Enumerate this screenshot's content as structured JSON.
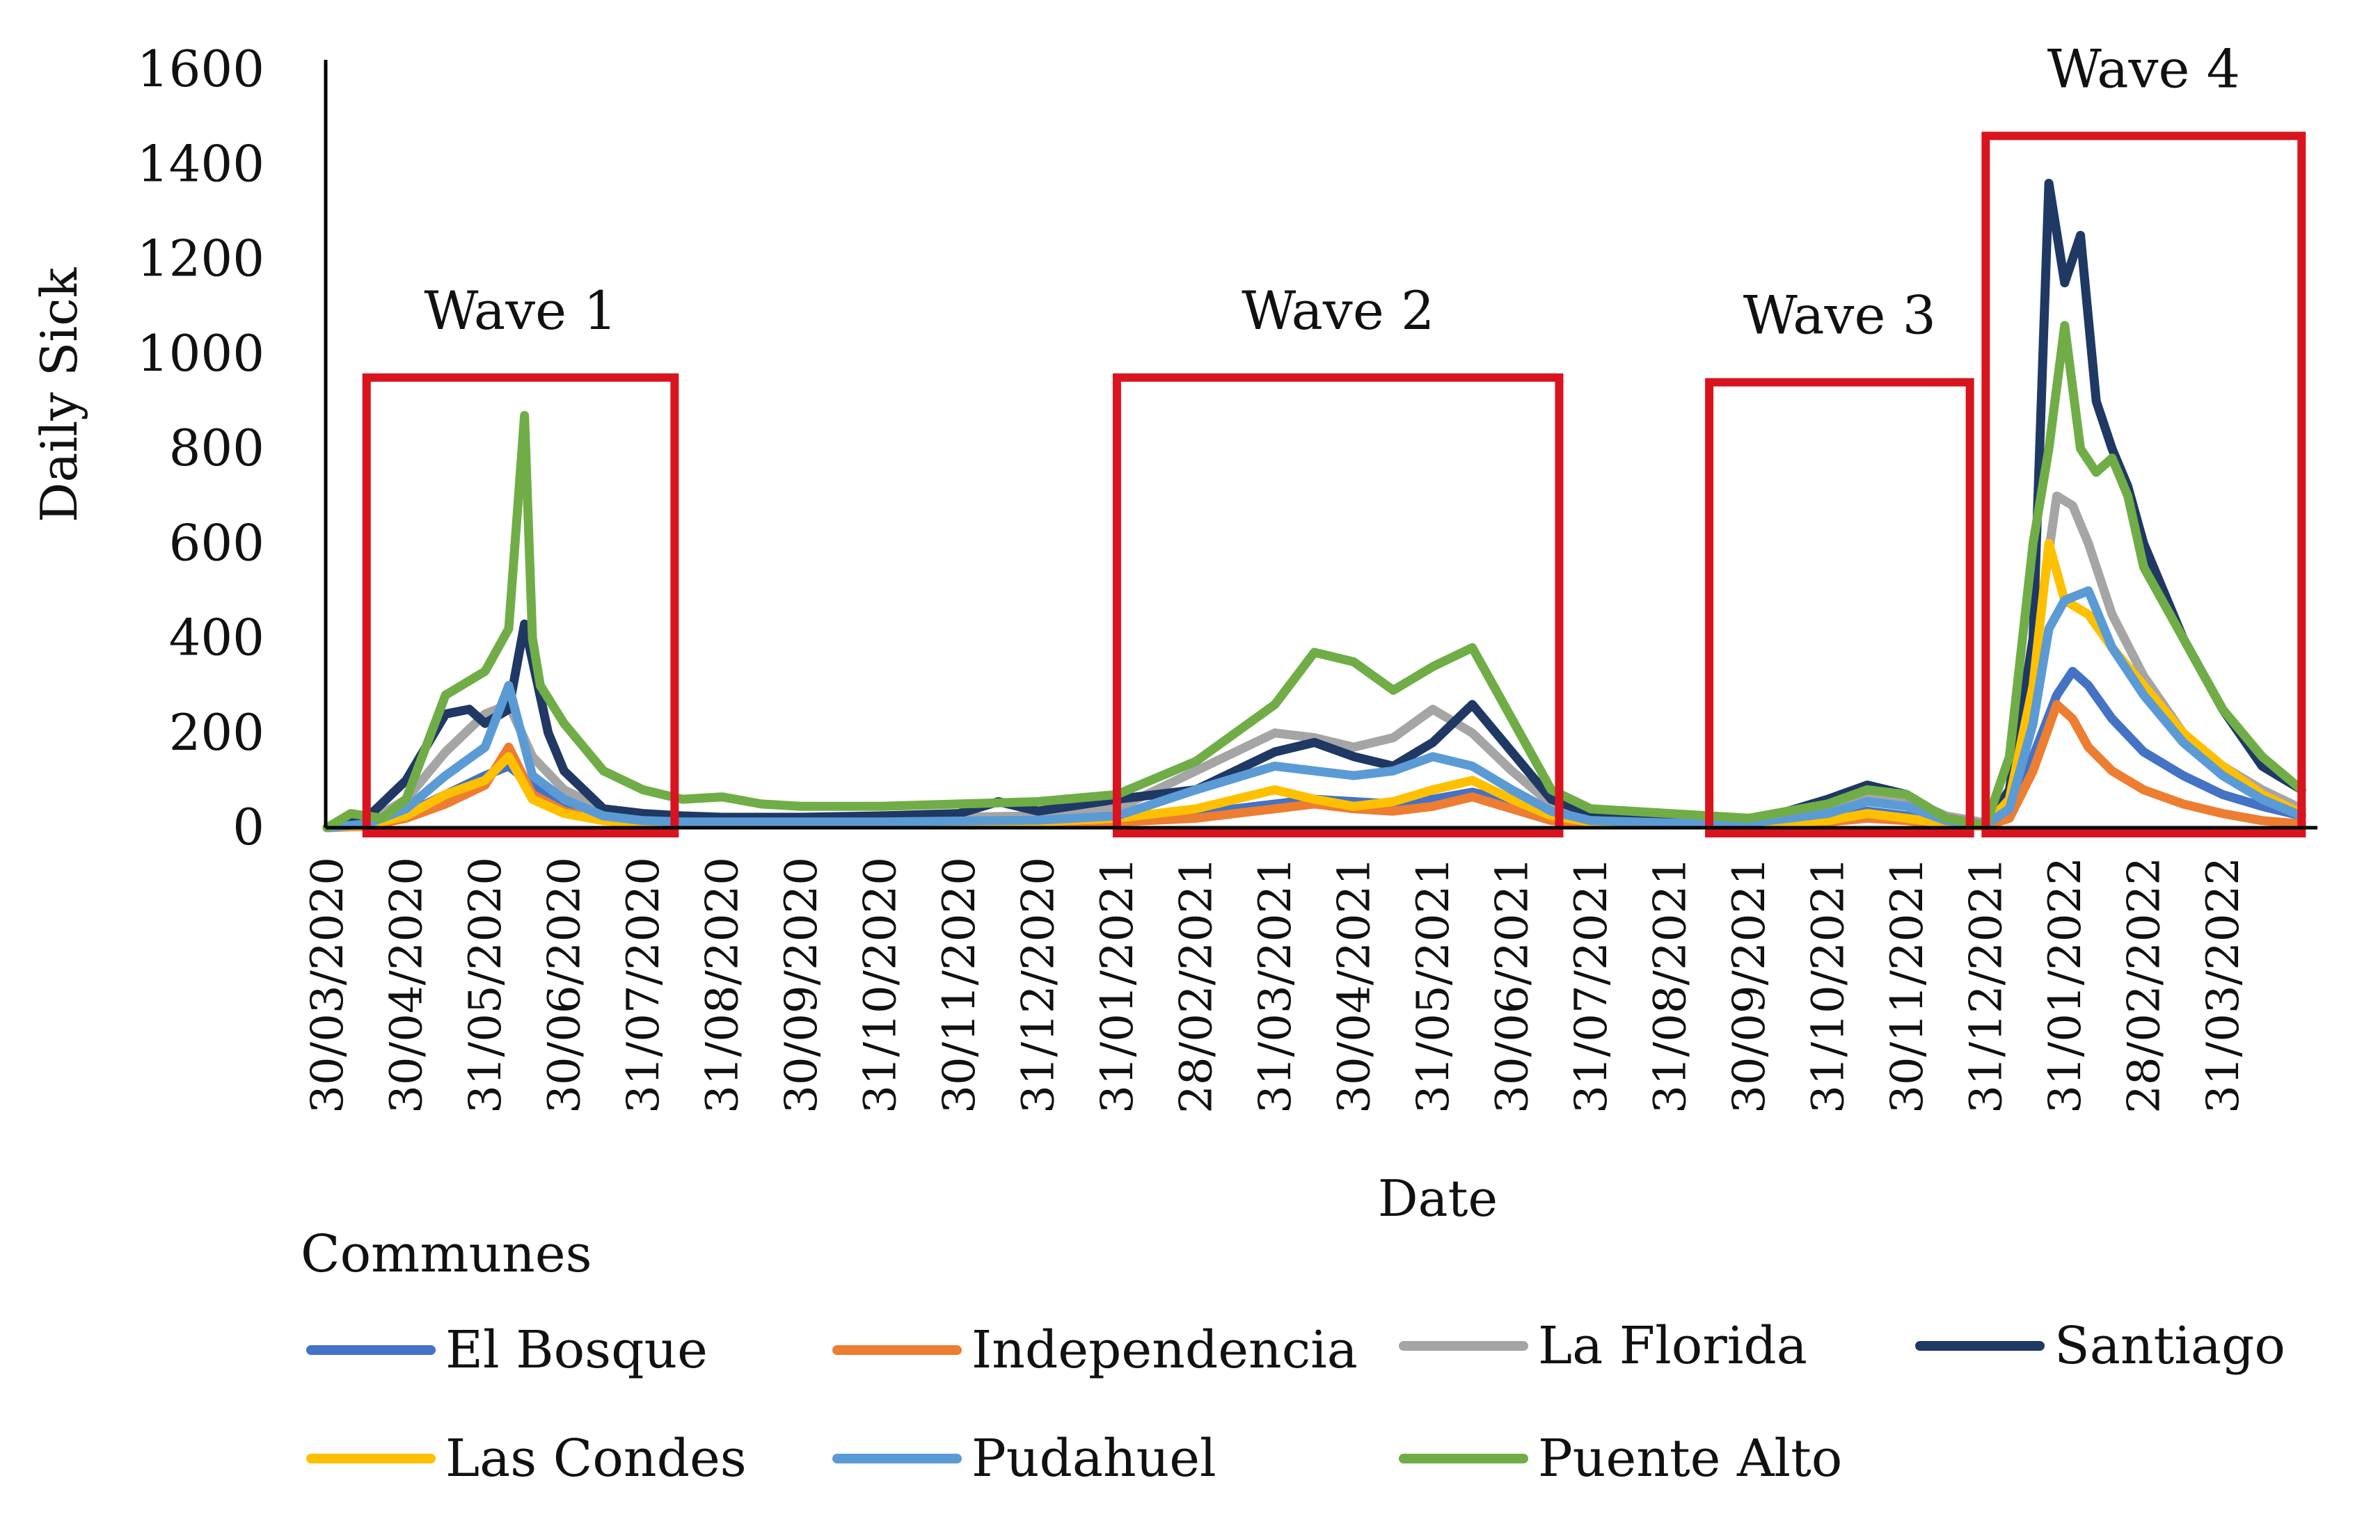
{
  "chart_data": {
    "type": "line",
    "xlabel": "Date",
    "ylabel": "Daily Sick",
    "ylim": [
      0,
      1600
    ],
    "yticks": [
      "0",
      "200",
      "400",
      "600",
      "800",
      "1000",
      "1200",
      "1400",
      "1600"
    ],
    "x_tick_labels": [
      "30/03/2020",
      "30/04/2020",
      "31/05/2020",
      "30/06/2020",
      "31/07/2020",
      "31/08/2020",
      "30/09/2020",
      "31/10/2020",
      "30/11/2020",
      "31/12/2020",
      "31/01/2021",
      "28/02/2021",
      "31/03/2021",
      "30/04/2021",
      "31/05/2021",
      "30/06/2021",
      "31/07/2021",
      "31/08/2021",
      "30/09/2021",
      "31/10/2021",
      "30/11/2021",
      "31/12/2021",
      "31/01/2022",
      "28/02/2022",
      "31/03/2022"
    ],
    "x_tick_months": [
      0,
      1,
      2,
      3,
      4,
      5,
      6,
      7,
      8,
      9,
      10,
      11,
      12,
      13,
      14,
      15,
      16,
      17,
      18,
      19,
      20,
      21,
      22,
      23,
      24
    ],
    "x_range_months": [
      0,
      25.2
    ],
    "annotations": [
      {
        "label": "Wave 1",
        "start_month": 0.5,
        "end_month": 4.4,
        "box_top": 950
      },
      {
        "label": "Wave 2",
        "start_month": 10.0,
        "end_month": 15.6,
        "box_top": 950
      },
      {
        "label": "Wave 3",
        "start_month": 17.5,
        "end_month": 20.8,
        "box_top": 940
      },
      {
        "label": "Wave 4",
        "start_month": 21.0,
        "end_month": 25.0,
        "box_top": 1460
      }
    ],
    "legend_title": "Communes",
    "series": [
      {
        "name": "El Bosque",
        "color": "#4472C4",
        "x": [
          0,
          0.5,
          1,
          1.5,
          2,
          2.3,
          2.6,
          3,
          3.5,
          4,
          4.5,
          5,
          6,
          7,
          8,
          9,
          10,
          11,
          12,
          12.5,
          13,
          13.5,
          14,
          14.5,
          15,
          15.5,
          16,
          17,
          18,
          19,
          19.5,
          20,
          20.5,
          21,
          21.3,
          21.6,
          21.9,
          22.1,
          22.3,
          22.6,
          23,
          23.5,
          24,
          24.5,
          25
        ],
        "values": [
          0,
          5,
          30,
          70,
          110,
          130,
          90,
          50,
          25,
          15,
          12,
          10,
          10,
          10,
          12,
          15,
          20,
          30,
          50,
          60,
          55,
          50,
          60,
          75,
          55,
          25,
          15,
          10,
          10,
          20,
          35,
          25,
          10,
          5,
          30,
          150,
          280,
          330,
          300,
          230,
          160,
          110,
          70,
          45,
          25
        ]
      },
      {
        "name": "Independencia",
        "color": "#ED7D31",
        "x": [
          0,
          0.5,
          1,
          1.5,
          2,
          2.3,
          2.6,
          3,
          3.5,
          4,
          4.5,
          5,
          6,
          7,
          8,
          9,
          10,
          11,
          12,
          12.5,
          13,
          13.5,
          14,
          14.5,
          15,
          15.5,
          16,
          17,
          18,
          19,
          19.5,
          20,
          20.5,
          21,
          21.3,
          21.6,
          21.9,
          22.1,
          22.3,
          22.6,
          23,
          23.5,
          24,
          24.5,
          25
        ],
        "values": [
          0,
          3,
          20,
          50,
          90,
          170,
          70,
          35,
          15,
          8,
          8,
          6,
          6,
          6,
          8,
          10,
          12,
          20,
          40,
          50,
          40,
          35,
          45,
          65,
          40,
          15,
          10,
          6,
          6,
          12,
          20,
          15,
          6,
          3,
          20,
          120,
          260,
          230,
          170,
          120,
          80,
          50,
          30,
          15,
          8
        ]
      },
      {
        "name": "La Florida",
        "color": "#A5A5A5",
        "x": [
          0,
          0.5,
          1,
          1.5,
          2,
          2.3,
          2.6,
          3,
          3.5,
          4,
          4.5,
          5,
          6,
          7,
          8,
          9,
          10,
          11,
          12,
          12.5,
          13,
          13.5,
          14,
          14.5,
          15,
          15.5,
          16,
          17,
          18,
          19,
          19.5,
          20,
          20.5,
          21,
          21.3,
          21.6,
          21.9,
          22.1,
          22.3,
          22.6,
          23,
          23.5,
          24,
          24.5,
          25
        ],
        "values": [
          0,
          10,
          60,
          160,
          240,
          260,
          150,
          80,
          40,
          25,
          20,
          18,
          18,
          20,
          22,
          25,
          40,
          120,
          200,
          190,
          170,
          190,
          250,
          200,
          120,
          50,
          25,
          15,
          15,
          40,
          70,
          60,
          25,
          10,
          60,
          350,
          700,
          680,
          600,
          450,
          320,
          200,
          130,
          80,
          40
        ]
      },
      {
        "name": "Santiago",
        "color": "#1F3864",
        "x": [
          0,
          0.5,
          1,
          1.5,
          1.8,
          2,
          2.3,
          2.5,
          2.8,
          3,
          3.5,
          4,
          4.5,
          5,
          6,
          7,
          8,
          8.5,
          9,
          10,
          11,
          12,
          12.5,
          13,
          13.5,
          14,
          14.5,
          15,
          15.5,
          16,
          17,
          18,
          19,
          19.5,
          20,
          20.5,
          21,
          21.3,
          21.6,
          21.8,
          22,
          22.2,
          22.4,
          22.6,
          22.8,
          23,
          23.5,
          24,
          24.5,
          25
        ],
        "values": [
          0,
          20,
          100,
          240,
          250,
          220,
          250,
          430,
          200,
          120,
          40,
          30,
          25,
          22,
          22,
          25,
          30,
          55,
          35,
          60,
          80,
          160,
          180,
          150,
          130,
          180,
          260,
          160,
          60,
          30,
          20,
          10,
          60,
          90,
          70,
          20,
          5,
          80,
          400,
          1360,
          1150,
          1250,
          900,
          800,
          720,
          600,
          400,
          250,
          130,
          80
        ]
      },
      {
        "name": "Las Condes",
        "color": "#FFC000",
        "x": [
          0,
          0.5,
          1,
          1.5,
          2,
          2.3,
          2.6,
          3,
          3.5,
          4,
          4.5,
          5,
          6,
          7,
          8,
          9,
          10,
          11,
          12,
          12.5,
          13,
          13.5,
          14,
          14.5,
          15,
          15.5,
          16,
          17,
          18,
          19,
          19.5,
          20,
          20.5,
          21,
          21.3,
          21.6,
          21.8,
          22,
          22.3,
          22.6,
          23,
          23.5,
          24,
          24.5,
          25
        ],
        "values": [
          0,
          5,
          25,
          70,
          100,
          150,
          60,
          30,
          15,
          10,
          8,
          8,
          8,
          8,
          10,
          12,
          20,
          40,
          80,
          60,
          45,
          55,
          80,
          100,
          60,
          25,
          12,
          8,
          8,
          15,
          30,
          20,
          8,
          5,
          60,
          300,
          600,
          480,
          450,
          380,
          300,
          200,
          130,
          70,
          30
        ]
      },
      {
        "name": "Pudahuel",
        "color": "#5B9BD5",
        "x": [
          0,
          0.5,
          1,
          1.5,
          2,
          2.3,
          2.6,
          3,
          3.5,
          4,
          4.5,
          5,
          6,
          7,
          8,
          9,
          10,
          11,
          12,
          12.5,
          13,
          13.5,
          14,
          14.5,
          15,
          15.5,
          16,
          17,
          18,
          19,
          19.5,
          20,
          20.5,
          21,
          21.3,
          21.6,
          21.8,
          22,
          22.3,
          22.6,
          23,
          23.5,
          24,
          24.5,
          25
        ],
        "values": [
          0,
          8,
          40,
          110,
          170,
          300,
          110,
          60,
          25,
          15,
          12,
          12,
          12,
          12,
          14,
          16,
          25,
          80,
          130,
          120,
          110,
          120,
          150,
          130,
          80,
          35,
          15,
          10,
          10,
          30,
          55,
          45,
          15,
          6,
          40,
          220,
          420,
          480,
          500,
          380,
          280,
          180,
          110,
          60,
          25
        ]
      },
      {
        "name": "Puente Alto",
        "color": "#70AD47",
        "x": [
          0,
          0.3,
          0.7,
          1,
          1.5,
          2,
          2.3,
          2.5,
          2.6,
          2.7,
          3,
          3.5,
          4,
          4.5,
          5,
          5.5,
          6,
          7,
          8,
          9,
          10,
          11,
          12,
          12.5,
          13,
          13.5,
          14,
          14.5,
          15,
          15.5,
          16,
          17,
          18,
          19,
          19.5,
          20,
          20.5,
          21,
          21.3,
          21.6,
          21.8,
          22,
          22.2,
          22.4,
          22.6,
          22.8,
          23,
          23.5,
          24,
          24.5,
          25
        ],
        "values": [
          0,
          30,
          20,
          60,
          280,
          330,
          420,
          870,
          400,
          300,
          220,
          120,
          80,
          60,
          65,
          50,
          45,
          45,
          50,
          55,
          70,
          140,
          260,
          370,
          350,
          290,
          340,
          380,
          230,
          80,
          40,
          30,
          20,
          50,
          80,
          70,
          20,
          5,
          150,
          600,
          800,
          1060,
          800,
          750,
          780,
          700,
          550,
          400,
          250,
          150,
          80
        ]
      }
    ]
  }
}
